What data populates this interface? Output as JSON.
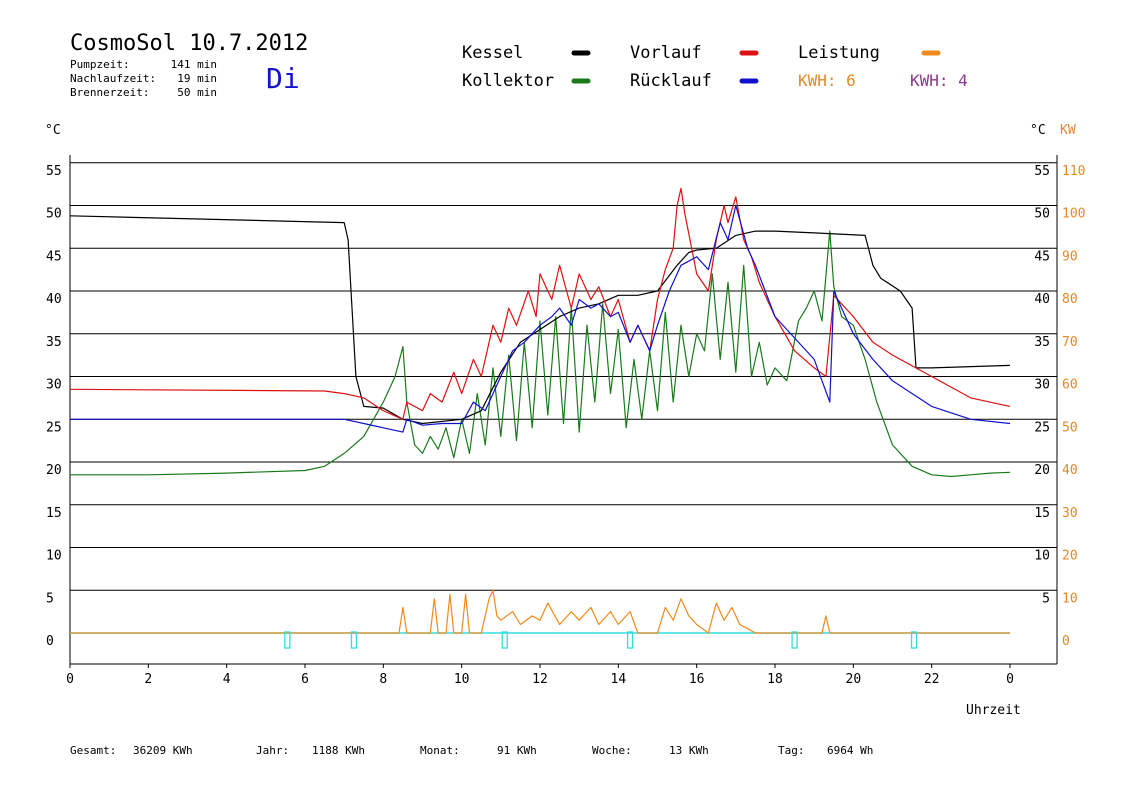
{
  "header": {
    "title": "CosmoSol 10.7.2012",
    "weekday": "Di",
    "info": [
      {
        "label": "Pumpzeit:",
        "value": "141 min"
      },
      {
        "label": "Nachlaufzeit:",
        "value": "19 min"
      },
      {
        "label": "Brennerzeit:",
        "value": "50 min"
      }
    ]
  },
  "legend": [
    {
      "label": "Kessel",
      "color": "#000000"
    },
    {
      "label": "Vorlauf",
      "color": "#dd1111"
    },
    {
      "label": "Leistung",
      "color": "#f08a1c"
    },
    {
      "label": "Kollektor",
      "color": "#1a7a1a"
    },
    {
      "label": "Rücklauf",
      "color": "#1111cc"
    }
  ],
  "kwh": [
    {
      "label": "KWH: 6",
      "color": "#e08a2a"
    },
    {
      "label": "KWH: 4",
      "color": "#8a3a8a"
    }
  ],
  "axes": {
    "left_unit": "°C",
    "right_unit_temp": "°C",
    "right_unit_power": "KW",
    "xlabel": "Uhrzeit"
  },
  "footer": [
    {
      "label": "Gesamt:",
      "value": "36209 KWh"
    },
    {
      "label": "Jahr:",
      "value": "1188 KWh"
    },
    {
      "label": "Monat:",
      "value": "91 KWh"
    },
    {
      "label": "Woche:",
      "value": "13 KWh"
    },
    {
      "label": "Tag:",
      "value": "6964 Wh"
    }
  ],
  "chart_data": {
    "type": "line",
    "title": "CosmoSol 10.7.2012",
    "xlabel": "Uhrzeit",
    "ylabel": "°C",
    "y2label": "KW",
    "xlim": [
      0,
      24
    ],
    "ylim": [
      0,
      55
    ],
    "y2lim": [
      0,
      110
    ],
    "x_ticks": [
      "0",
      "2",
      "4",
      "6",
      "8",
      "10",
      "12",
      "14",
      "16",
      "18",
      "20",
      "22",
      "0"
    ],
    "y_ticks_left": [
      0,
      5,
      10,
      15,
      20,
      25,
      30,
      35,
      40,
      45,
      50,
      55
    ],
    "y_ticks_right_temp": [
      5,
      10,
      15,
      20,
      25,
      30,
      35,
      40,
      45,
      50,
      55
    ],
    "y_ticks_right_power": [
      0,
      10,
      20,
      30,
      40,
      50,
      60,
      70,
      80,
      90,
      100,
      110
    ],
    "grid": true,
    "series": [
      {
        "name": "Kessel",
        "color": "#000000",
        "x": [
          0,
          7.0,
          7.1,
          7.2,
          7.3,
          7.5,
          8.0,
          8.5,
          9.0,
          10.0,
          10.5,
          11.0,
          11.5,
          12.0,
          12.5,
          13.0,
          13.5,
          14.0,
          14.5,
          15.0,
          15.5,
          15.8,
          16.0,
          16.5,
          17.0,
          17.5,
          18.0,
          19.0,
          20.3,
          20.5,
          20.7,
          21.2,
          21.5,
          21.6,
          22.0,
          24.0
        ],
        "y": [
          48.8,
          48.0,
          46.0,
          38.0,
          30.0,
          26.5,
          26.3,
          25.0,
          24.5,
          25.0,
          26.0,
          30.5,
          34.0,
          35.5,
          37.0,
          38.0,
          38.5,
          39.5,
          39.5,
          40.0,
          43.0,
          44.5,
          44.8,
          45.0,
          46.5,
          47.0,
          47.0,
          46.8,
          46.5,
          43.0,
          41.5,
          40.0,
          38.0,
          31.0,
          31.0,
          31.3
        ]
      },
      {
        "name": "Vorlauf",
        "color": "#dd1111",
        "x": [
          0,
          6.5,
          7.0,
          7.5,
          8.0,
          8.5,
          8.6,
          9.0,
          9.2,
          9.5,
          9.8,
          10.0,
          10.3,
          10.5,
          10.8,
          11.0,
          11.2,
          11.4,
          11.7,
          11.9,
          12.0,
          12.3,
          12.5,
          12.8,
          13.0,
          13.3,
          13.5,
          13.8,
          14.0,
          14.3,
          14.5,
          14.8,
          15.0,
          15.2,
          15.4,
          15.5,
          15.6,
          15.7,
          16.0,
          16.3,
          16.5,
          16.7,
          16.8,
          17.0,
          17.2,
          17.4,
          17.6,
          18.0,
          18.5,
          19.0,
          19.3,
          19.5,
          20.0,
          20.5,
          21.0,
          22.0,
          23.0,
          24.0
        ],
        "y": [
          28.5,
          28.3,
          28.0,
          27.5,
          26.0,
          25.0,
          27.0,
          26.0,
          28.0,
          27.0,
          30.5,
          28.0,
          32.0,
          30.0,
          36.0,
          34.0,
          38.0,
          36.0,
          40.0,
          37.0,
          42.0,
          39.0,
          43.0,
          38.0,
          42.0,
          39.0,
          40.5,
          37.0,
          39.0,
          34.0,
          36.0,
          33.0,
          39.0,
          42.5,
          45.0,
          50.0,
          52.0,
          49.0,
          42.0,
          40.0,
          46.0,
          50.0,
          48.0,
          51.0,
          46.0,
          44.0,
          41.0,
          37.0,
          33.0,
          31.0,
          30.0,
          39.5,
          37.0,
          34.0,
          32.5,
          30.0,
          27.5,
          26.5
        ]
      },
      {
        "name": "Rücklauf",
        "color": "#1111cc",
        "x": [
          0,
          6.0,
          7.0,
          7.5,
          8.0,
          8.5,
          8.6,
          9.0,
          9.5,
          10.0,
          10.3,
          10.6,
          11.0,
          11.3,
          11.6,
          12.0,
          12.3,
          12.5,
          12.8,
          13.0,
          13.3,
          13.5,
          13.8,
          14.0,
          14.3,
          14.5,
          14.8,
          15.0,
          15.3,
          15.6,
          16.0,
          16.3,
          16.6,
          16.8,
          17.0,
          17.3,
          17.5,
          18.0,
          19.0,
          19.4,
          19.5,
          20.0,
          20.5,
          21.0,
          22.0,
          23.0,
          24.0
        ],
        "y": [
          25.0,
          25.0,
          25.0,
          24.5,
          24.0,
          23.5,
          25.0,
          24.3,
          24.5,
          24.5,
          27.0,
          26.0,
          30.0,
          33.0,
          34.0,
          36.0,
          37.0,
          38.0,
          36.0,
          39.0,
          38.0,
          38.5,
          37.0,
          37.5,
          34.0,
          36.0,
          33.0,
          36.0,
          40.0,
          43.0,
          44.0,
          42.5,
          48.0,
          46.0,
          50.0,
          45.0,
          43.0,
          37.0,
          32.0,
          27.0,
          40.0,
          35.0,
          32.0,
          29.5,
          26.5,
          25.0,
          24.5
        ]
      },
      {
        "name": "Kollektor",
        "color": "#1a7a1a",
        "x": [
          0,
          2.0,
          4.0,
          6.0,
          6.5,
          7.0,
          7.5,
          8.0,
          8.3,
          8.5,
          8.6,
          8.8,
          9.0,
          9.2,
          9.4,
          9.6,
          9.8,
          10.0,
          10.2,
          10.4,
          10.6,
          10.8,
          11.0,
          11.2,
          11.4,
          11.6,
          11.8,
          12.0,
          12.2,
          12.4,
          12.6,
          12.8,
          13.0,
          13.2,
          13.4,
          13.6,
          13.8,
          14.0,
          14.2,
          14.4,
          14.6,
          14.8,
          15.0,
          15.2,
          15.4,
          15.6,
          15.8,
          16.0,
          16.2,
          16.4,
          16.6,
          16.8,
          17.0,
          17.2,
          17.4,
          17.6,
          17.8,
          18.0,
          18.3,
          18.6,
          18.8,
          19.0,
          19.2,
          19.4,
          19.5,
          19.7,
          20.0,
          20.3,
          20.6,
          21.0,
          21.5,
          22.0,
          22.5,
          23.0,
          23.5,
          24.0
        ],
        "y": [
          18.5,
          18.5,
          18.7,
          19.0,
          19.5,
          21.0,
          23.0,
          27.0,
          30.0,
          33.5,
          27.0,
          22.0,
          21.0,
          23.0,
          21.5,
          24.0,
          20.5,
          25.0,
          21.0,
          28.0,
          22.0,
          31.0,
          23.0,
          32.5,
          22.5,
          34.0,
          24.0,
          36.5,
          25.5,
          37.0,
          24.5,
          38.0,
          23.5,
          36.0,
          27.0,
          38.5,
          28.0,
          35.5,
          24.0,
          32.0,
          25.0,
          33.0,
          26.0,
          37.5,
          27.0,
          36.0,
          30.0,
          35.0,
          33.0,
          42.0,
          32.0,
          41.0,
          30.5,
          43.0,
          30.0,
          34.0,
          29.0,
          31.0,
          29.5,
          36.5,
          38.0,
          40.0,
          36.5,
          47.0,
          40.5,
          37.0,
          36.0,
          32.0,
          27.0,
          22.0,
          19.5,
          18.5,
          18.3,
          18.5,
          18.7,
          18.8
        ]
      },
      {
        "name": "Leistung",
        "color": "#f08a1c",
        "axis": "right",
        "x": [
          0,
          8.4,
          8.5,
          8.6,
          9.2,
          9.3,
          9.4,
          9.6,
          9.7,
          9.8,
          10.0,
          10.1,
          10.2,
          10.5,
          10.7,
          10.8,
          10.9,
          11.0,
          11.3,
          11.5,
          11.8,
          12.0,
          12.2,
          12.5,
          12.8,
          13.0,
          13.3,
          13.5,
          13.8,
          14.0,
          14.3,
          14.5,
          15.0,
          15.2,
          15.4,
          15.6,
          15.8,
          16.0,
          16.3,
          16.5,
          16.7,
          16.9,
          17.1,
          17.3,
          17.5,
          19.2,
          19.3,
          19.4,
          19.5,
          24.0
        ],
        "y": [
          0,
          0,
          6,
          0,
          0,
          8,
          0,
          0,
          9,
          0,
          0,
          9,
          0,
          0,
          8,
          10,
          4,
          3,
          5,
          2,
          4,
          3,
          7,
          2,
          5,
          3,
          6,
          2,
          5,
          2,
          5,
          0,
          0,
          6,
          3,
          8,
          4,
          2,
          0,
          7,
          3,
          6,
          2,
          1,
          0,
          0,
          4,
          0,
          0,
          0
        ]
      }
    ],
    "pump_markers_x": [
      5.55,
      7.25,
      11.1,
      14.3,
      18.5,
      21.55
    ]
  }
}
